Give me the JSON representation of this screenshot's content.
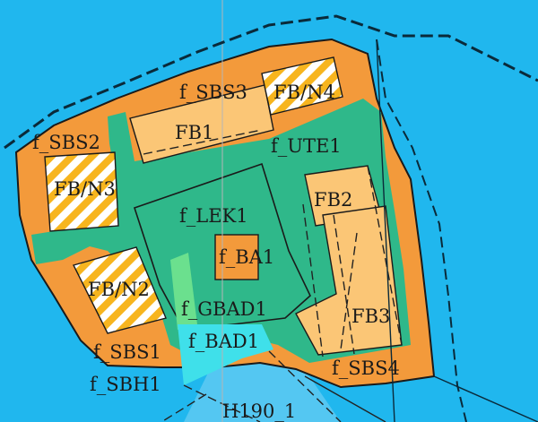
{
  "colors": {
    "water": "#20b7ee",
    "water_light": "#7fd6f6",
    "shore_outline": "#0a2a3a",
    "orange": "#f39a3b",
    "orange_light": "#fbc676",
    "green": "#2fb88a",
    "green_light": "#6be08e",
    "cyan": "#3fe0ea",
    "hatch_yellow": "#f7b51e",
    "hatch_white": "#ffffff",
    "line": "#222222"
  },
  "labels": {
    "f_sbs3": "f_SBS3",
    "fb_n4": "FB/N4",
    "fb1": "FB1",
    "f_ute1": "f_UTE1",
    "f_sbs2": "f_SBS2",
    "fb_n3": "FB/N3",
    "fb2": "FB2",
    "f_lek1": "f_LEK1",
    "f_ba1": "f_BA1",
    "fb_n2": "FB/N2",
    "f_gbad1": "f_GBAD1",
    "fb3": "FB3",
    "f_bad1": "f_BAD1",
    "f_sbs1": "f_SBS1",
    "f_sbs4": "f_SBS4",
    "f_sbh1": "f_SBH1",
    "h190_1": "H190_1"
  }
}
